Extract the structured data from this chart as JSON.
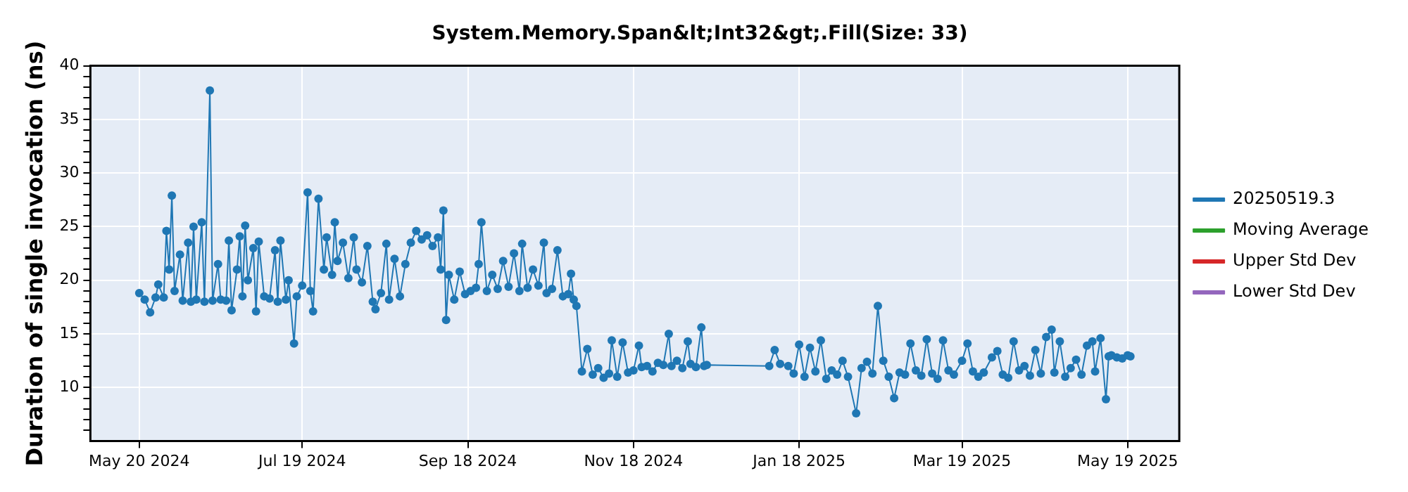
{
  "chart_data": {
    "type": "line",
    "title": "System.Memory.Span&lt;Int32&gt;.Fill(Size: 33)",
    "ylabel": "Duration of single invocation (ns)",
    "xlim": [
      "2024-05-02",
      "2025-06-07"
    ],
    "xticks": [
      {
        "value": "2024-05-20",
        "label": "May 20 2024"
      },
      {
        "value": "2024-07-19",
        "label": "Jul 19 2024"
      },
      {
        "value": "2024-09-18",
        "label": "Sep 18 2024"
      },
      {
        "value": "2024-11-18",
        "label": "Nov 18 2024"
      },
      {
        "value": "2025-01-18",
        "label": "Jan 18 2025"
      },
      {
        "value": "2025-03-19",
        "label": "Mar 19 2025"
      },
      {
        "value": "2025-05-19",
        "label": "May 19 2025"
      }
    ],
    "ylim": [
      5,
      40
    ],
    "yticks": [
      {
        "value": 6,
        "label": null
      },
      {
        "value": 7,
        "label": null
      },
      {
        "value": 8,
        "label": null
      },
      {
        "value": 9,
        "label": null
      },
      10,
      {
        "value": 11,
        "label": null
      },
      {
        "value": 12,
        "label": null
      },
      {
        "value": 13,
        "label": null
      },
      {
        "value": 14,
        "label": null
      },
      15,
      {
        "value": 16,
        "label": null
      },
      {
        "value": 17,
        "label": null
      },
      {
        "value": 18,
        "label": null
      },
      {
        "value": 19,
        "label": null
      },
      20,
      {
        "value": 21,
        "label": null
      },
      {
        "value": 22,
        "label": null
      },
      {
        "value": 23,
        "label": null
      },
      {
        "value": 24,
        "label": null
      },
      25,
      {
        "value": 26,
        "label": null
      },
      {
        "value": 27,
        "label": null
      },
      {
        "value": 28,
        "label": null
      },
      {
        "value": 29,
        "label": null
      },
      30,
      {
        "value": 31,
        "label": null
      },
      {
        "value": 32,
        "label": null
      },
      {
        "value": 33,
        "label": null
      },
      {
        "value": 34,
        "label": null
      },
      35,
      {
        "value": 36,
        "label": null
      },
      {
        "value": 37,
        "label": null
      },
      {
        "value": 38,
        "label": null
      },
      {
        "value": 39,
        "label": null
      },
      40
    ],
    "grid": true,
    "legend": "right",
    "marker": "circle",
    "line_style": "solid",
    "series": [
      {
        "name": "20250519.3",
        "color": "#1f77b4",
        "x": [
          "2024-05-20",
          "2024-05-22",
          "2024-05-24",
          "2024-05-26",
          "2024-05-27",
          "2024-05-29",
          "2024-05-30",
          "2024-05-31",
          "2024-06-01",
          "2024-06-02",
          "2024-06-04",
          "2024-06-05",
          "2024-06-07",
          "2024-06-08",
          "2024-06-09",
          "2024-06-10",
          "2024-06-12",
          "2024-06-13",
          "2024-06-15",
          "2024-06-16",
          "2024-06-18",
          "2024-06-19",
          "2024-06-21",
          "2024-06-22",
          "2024-06-23",
          "2024-06-25",
          "2024-06-26",
          "2024-06-27",
          "2024-06-28",
          "2024-06-29",
          "2024-07-01",
          "2024-07-02",
          "2024-07-03",
          "2024-07-05",
          "2024-07-07",
          "2024-07-09",
          "2024-07-10",
          "2024-07-11",
          "2024-07-13",
          "2024-07-14",
          "2024-07-16",
          "2024-07-17",
          "2024-07-19",
          "2024-07-21",
          "2024-07-22",
          "2024-07-23",
          "2024-07-25",
          "2024-07-27",
          "2024-07-28",
          "2024-07-30",
          "2024-07-31",
          "2024-08-01",
          "2024-08-03",
          "2024-08-05",
          "2024-08-07",
          "2024-08-08",
          "2024-08-10",
          "2024-08-12",
          "2024-08-14",
          "2024-08-15",
          "2024-08-17",
          "2024-08-19",
          "2024-08-20",
          "2024-08-22",
          "2024-08-24",
          "2024-08-26",
          "2024-08-28",
          "2024-08-30",
          "2024-09-01",
          "2024-09-03",
          "2024-09-05",
          "2024-09-07",
          "2024-09-08",
          "2024-09-09",
          "2024-09-10",
          "2024-09-11",
          "2024-09-13",
          "2024-09-15",
          "2024-09-17",
          "2024-09-19",
          "2024-09-21",
          "2024-09-22",
          "2024-09-23",
          "2024-09-25",
          "2024-09-27",
          "2024-09-29",
          "2024-10-01",
          "2024-10-03",
          "2024-10-05",
          "2024-10-07",
          "2024-10-08",
          "2024-10-10",
          "2024-10-12",
          "2024-10-14",
          "2024-10-16",
          "2024-10-17",
          "2024-10-19",
          "2024-10-21",
          "2024-10-23",
          "2024-10-25",
          "2024-10-26",
          "2024-10-27",
          "2024-10-28",
          "2024-10-30",
          "2024-11-01",
          "2024-11-03",
          "2024-11-05",
          "2024-11-07",
          "2024-11-09",
          "2024-11-10",
          "2024-11-12",
          "2024-11-14",
          "2024-11-16",
          "2024-11-18",
          "2024-11-20",
          "2024-11-21",
          "2024-11-23",
          "2024-11-25",
          "2024-11-27",
          "2024-11-29",
          "2024-12-01",
          "2024-12-02",
          "2024-12-04",
          "2024-12-06",
          "2024-12-08",
          "2024-12-09",
          "2024-12-11",
          "2024-12-13",
          "2024-12-14",
          "2024-12-15",
          "2025-01-07",
          "2025-01-09",
          "2025-01-11",
          "2025-01-14",
          "2025-01-16",
          "2025-01-18",
          "2025-01-20",
          "2025-01-22",
          "2025-01-24",
          "2025-01-26",
          "2025-01-28",
          "2025-01-30",
          "2025-02-01",
          "2025-02-03",
          "2025-02-05",
          "2025-02-08",
          "2025-02-10",
          "2025-02-12",
          "2025-02-14",
          "2025-02-16",
          "2025-02-18",
          "2025-02-20",
          "2025-02-22",
          "2025-02-24",
          "2025-02-26",
          "2025-02-28",
          "2025-03-02",
          "2025-03-04",
          "2025-03-06",
          "2025-03-08",
          "2025-03-10",
          "2025-03-12",
          "2025-03-14",
          "2025-03-16",
          "2025-03-19",
          "2025-03-21",
          "2025-03-23",
          "2025-03-25",
          "2025-03-27",
          "2025-03-30",
          "2025-04-01",
          "2025-04-03",
          "2025-04-05",
          "2025-04-07",
          "2025-04-09",
          "2025-04-11",
          "2025-04-13",
          "2025-04-15",
          "2025-04-17",
          "2025-04-19",
          "2025-04-21",
          "2025-04-22",
          "2025-04-24",
          "2025-04-26",
          "2025-04-28",
          "2025-04-30",
          "2025-05-02",
          "2025-05-04",
          "2025-05-06",
          "2025-05-07",
          "2025-05-09",
          "2025-05-11",
          "2025-05-12",
          "2025-05-13",
          "2025-05-15",
          "2025-05-17",
          "2025-05-19",
          "2025-05-20"
        ],
        "values": [
          18.8,
          18.2,
          17.0,
          18.4,
          19.6,
          18.4,
          24.6,
          21.0,
          27.9,
          19.0,
          22.4,
          18.1,
          23.5,
          18.0,
          25.0,
          18.2,
          25.4,
          18.0,
          37.7,
          18.1,
          21.5,
          18.2,
          18.1,
          23.7,
          17.2,
          21.0,
          24.1,
          18.5,
          25.1,
          20.0,
          23.0,
          17.1,
          23.6,
          18.5,
          18.3,
          22.8,
          18.0,
          23.7,
          18.2,
          20.0,
          14.1,
          18.5,
          19.5,
          28.2,
          19.0,
          17.1,
          27.6,
          21.0,
          24.0,
          20.5,
          25.4,
          21.8,
          23.5,
          20.2,
          24.0,
          21.0,
          19.8,
          23.2,
          18.0,
          17.3,
          18.8,
          23.4,
          18.2,
          22.0,
          18.5,
          21.5,
          23.5,
          24.6,
          23.8,
          24.2,
          23.2,
          24.0,
          21.0,
          26.5,
          16.3,
          20.5,
          18.2,
          20.8,
          18.7,
          19.0,
          19.3,
          21.5,
          25.4,
          19.0,
          20.5,
          19.2,
          21.8,
          19.4,
          22.5,
          19.0,
          23.4,
          19.3,
          21.0,
          19.5,
          23.5,
          18.8,
          19.2,
          22.8,
          18.5,
          18.7,
          20.6,
          18.2,
          17.6,
          11.5,
          13.6,
          11.2,
          11.8,
          10.9,
          11.3,
          14.4,
          11.0,
          14.2,
          11.4,
          11.6,
          13.9,
          11.9,
          12.0,
          11.5,
          12.3,
          12.1,
          15.0,
          12.0,
          12.5,
          11.8,
          14.3,
          12.2,
          11.9,
          15.6,
          12.0,
          12.1,
          12.0,
          13.5,
          12.2,
          12.0,
          11.3,
          14.0,
          11.0,
          13.7,
          11.5,
          14.4,
          10.8,
          11.6,
          11.2,
          12.5,
          11.0,
          7.6,
          11.8,
          12.4,
          11.3,
          17.6,
          12.5,
          11.0,
          9.0,
          11.4,
          11.2,
          14.1,
          11.6,
          11.1,
          14.5,
          11.3,
          10.8,
          14.4,
          11.6,
          11.2,
          12.5,
          14.1,
          11.5,
          11.0,
          11.4,
          12.8,
          13.4,
          11.2,
          10.9,
          14.3,
          11.6,
          12.0,
          11.1,
          13.5,
          11.3,
          14.7,
          15.4,
          11.4,
          14.3,
          11.0,
          11.8,
          12.6,
          11.2,
          13.9,
          14.3,
          11.5,
          14.6,
          8.9,
          12.9,
          13.0,
          12.8,
          12.7,
          13.0,
          12.9
        ]
      },
      {
        "name": "Moving Average",
        "color": "#2ca02c"
      },
      {
        "name": "Upper Std Dev",
        "color": "#d62728"
      },
      {
        "name": "Lower Std Dev",
        "color": "#9467bd"
      }
    ]
  }
}
